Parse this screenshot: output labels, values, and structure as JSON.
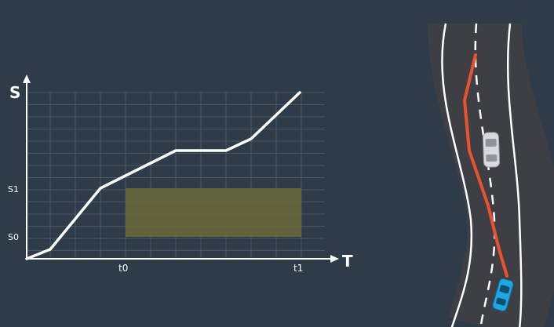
{
  "chart": {
    "y_axis_label": "S",
    "x_axis_label": "T",
    "y_ticks": [
      {
        "label": "S1",
        "value": 1
      },
      {
        "label": "S0",
        "value": 0
      }
    ],
    "x_ticks": [
      {
        "label": "t0",
        "value": 0
      },
      {
        "label": "t1",
        "value": 1
      }
    ],
    "obstacle_region": {
      "t_from": "t0",
      "t_to": "t1",
      "s_from": "S0",
      "s_to": "S1",
      "color": "#6b6a3a"
    },
    "profile_color": "#ffffff"
  },
  "scene": {
    "road_color": "#3e3f45",
    "lane_line_color": "#ffffff",
    "path_color": "#e8532e",
    "ego_car_color": "#1ea7e1",
    "obstacle_car_color": "#d9dadb"
  }
}
